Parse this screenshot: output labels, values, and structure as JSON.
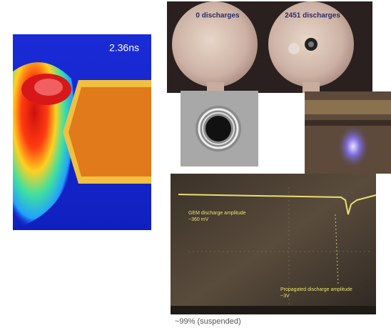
{
  "simulation": {
    "time": "2.36ns"
  },
  "photo": {
    "labels": [
      "0 discharges",
      "2451 discharges"
    ]
  },
  "oscilloscope": {
    "annotations": [
      {
        "lines": [
          "GEM discharge amplitude",
          "~360 mV"
        ]
      },
      {
        "lines": [
          "Propagated discharge amplitude",
          "~3V"
        ]
      }
    ]
  },
  "caption": "~99% (suspended)"
}
